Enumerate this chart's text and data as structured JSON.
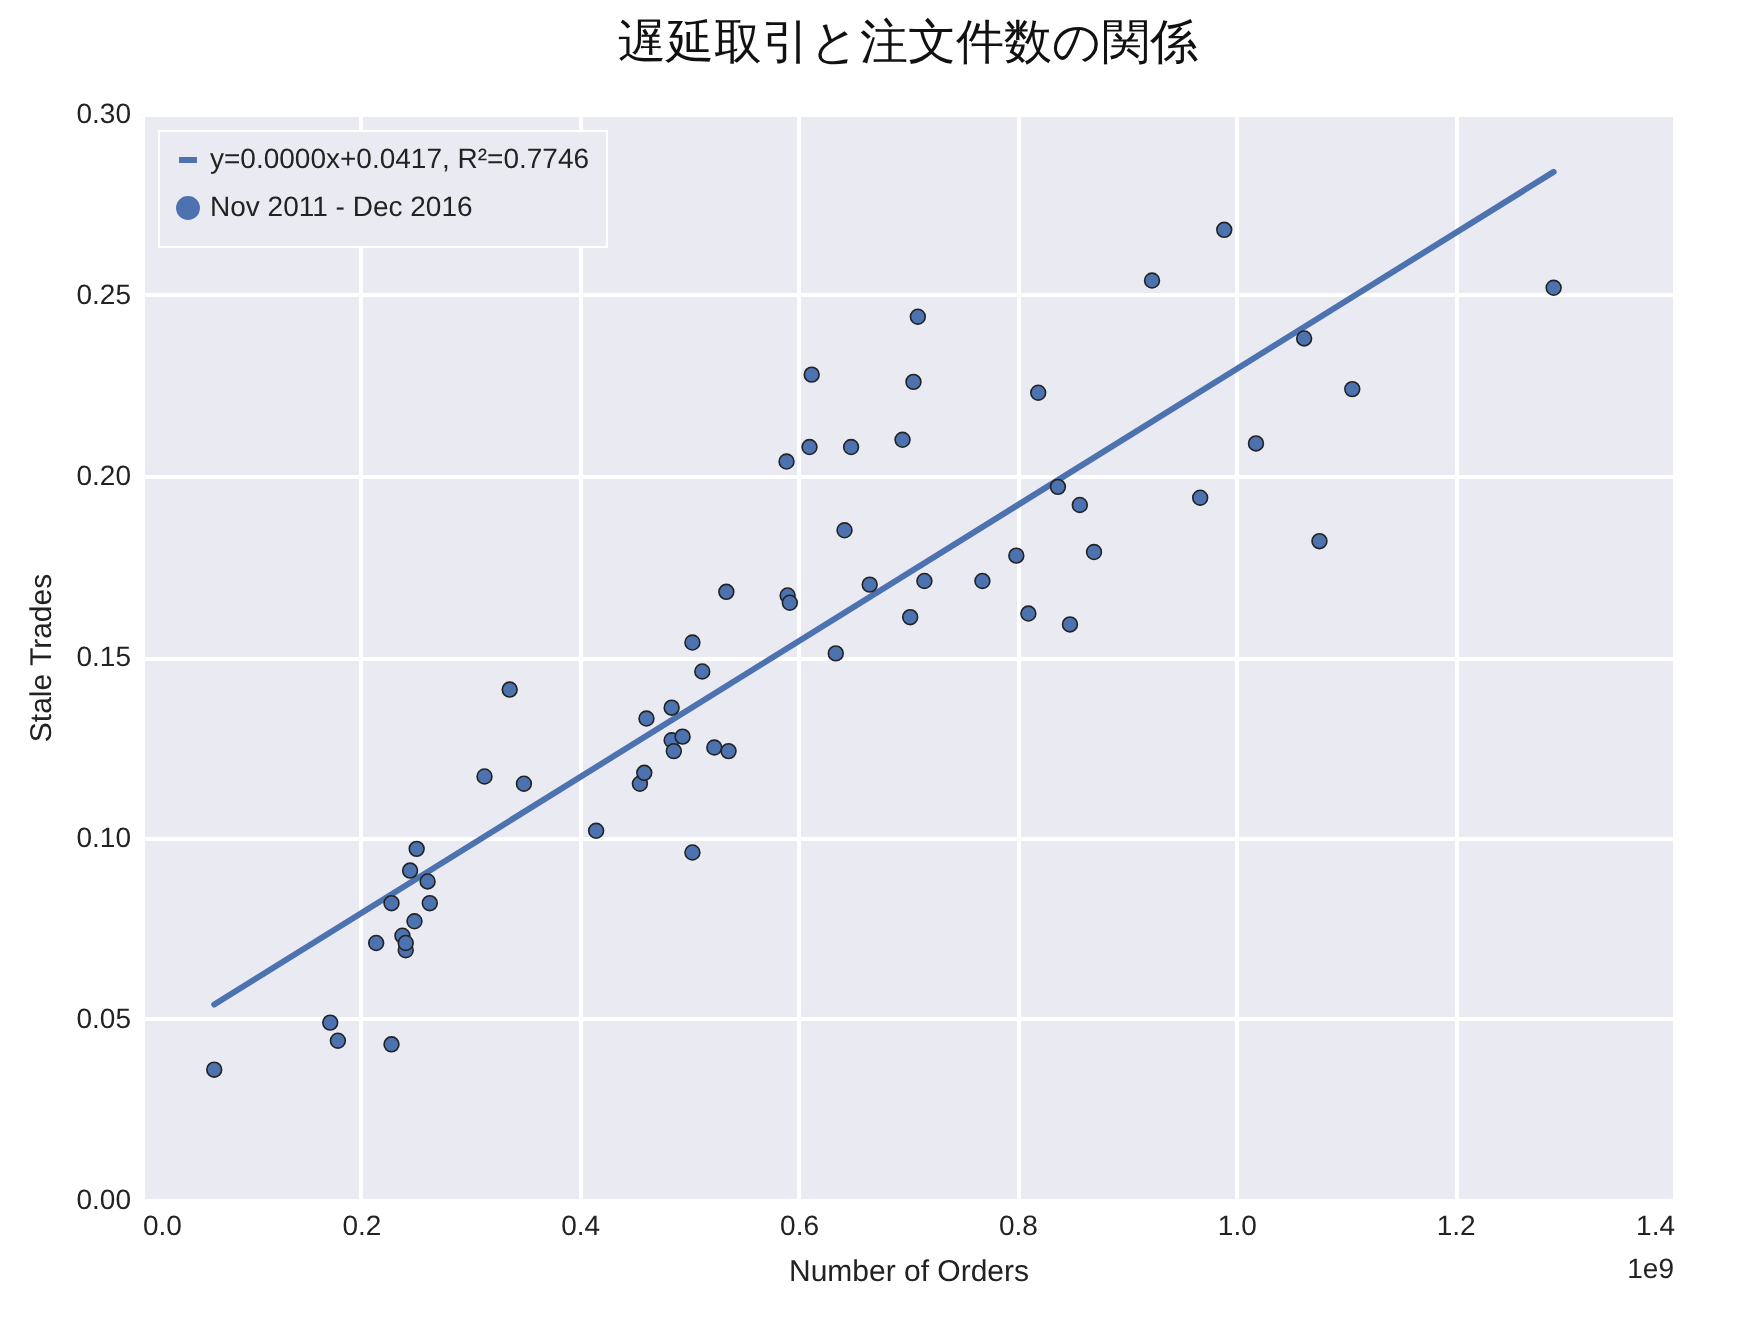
{
  "chart_data": {
    "type": "scatter",
    "title": "遅延取引と注文件数の関係",
    "xlabel": "Number of Orders",
    "ylabel": "Stale Trades",
    "xlim": [
      0,
      1.4
    ],
    "xticks": [
      {
        "value": 0,
        "label": "0.0"
      },
      0.2,
      0.4,
      0.6,
      0.8,
      {
        "value": 1,
        "label": "1.0"
      },
      1.2,
      1.4
    ],
    "ylim": [
      0,
      0.3
    ],
    "yticks": [
      {
        "value": 0,
        "label": "0.00"
      },
      0.05,
      {
        "value": 0.1,
        "label": "0.10"
      },
      0.15,
      {
        "value": 0.2,
        "label": "0.20"
      },
      0.25,
      {
        "value": 0.3,
        "label": "0.30"
      }
    ],
    "grid": true,
    "legend": "top left",
    "annotations": [
      "1e9"
    ],
    "series": [
      {
        "name": "y=0.0000x+0.0417, R²=0.7746",
        "type": "line",
        "color": "#4c72b0",
        "line_style": "solid",
        "x": [
          0.066,
          1.29
        ],
        "values": [
          0.054,
          0.284
        ]
      },
      {
        "name": "Nov 2011 - Dec 2016",
        "color": "#4c72b0",
        "marker": "circle",
        "x": [
          0.066,
          0.172,
          0.179,
          0.228,
          0.214,
          0.228,
          0.238,
          0.241,
          0.241,
          0.245,
          0.249,
          0.251,
          0.261,
          0.263,
          0.313,
          0.336,
          0.349,
          0.415,
          0.455,
          0.459,
          0.461,
          0.484,
          0.484,
          0.486,
          0.494,
          0.503,
          0.503,
          0.512,
          0.523,
          0.534,
          0.536,
          0.589,
          0.59,
          0.592,
          0.61,
          0.612,
          0.634,
          0.642,
          0.648,
          0.665,
          0.695,
          0.702,
          0.705,
          0.709,
          0.715,
          0.768,
          0.799,
          0.81,
          0.819,
          0.837,
          0.848,
          0.857,
          0.87,
          0.923,
          0.967,
          0.989,
          1.018,
          1.062,
          1.076,
          1.106,
          1.29
        ],
        "values": [
          0.036,
          0.049,
          0.044,
          0.043,
          0.071,
          0.082,
          0.073,
          0.069,
          0.071,
          0.091,
          0.077,
          0.097,
          0.088,
          0.082,
          0.117,
          0.141,
          0.115,
          0.102,
          0.115,
          0.118,
          0.133,
          0.136,
          0.127,
          0.124,
          0.128,
          0.096,
          0.154,
          0.146,
          0.125,
          0.168,
          0.124,
          0.204,
          0.167,
          0.165,
          0.208,
          0.228,
          0.151,
          0.185,
          0.208,
          0.17,
          0.21,
          0.161,
          0.226,
          0.244,
          0.171,
          0.171,
          0.178,
          0.162,
          0.223,
          0.197,
          0.159,
          0.192,
          0.179,
          0.254,
          0.194,
          0.268,
          0.209,
          0.238,
          0.182,
          0.224,
          0.252
        ]
      }
    ]
  }
}
